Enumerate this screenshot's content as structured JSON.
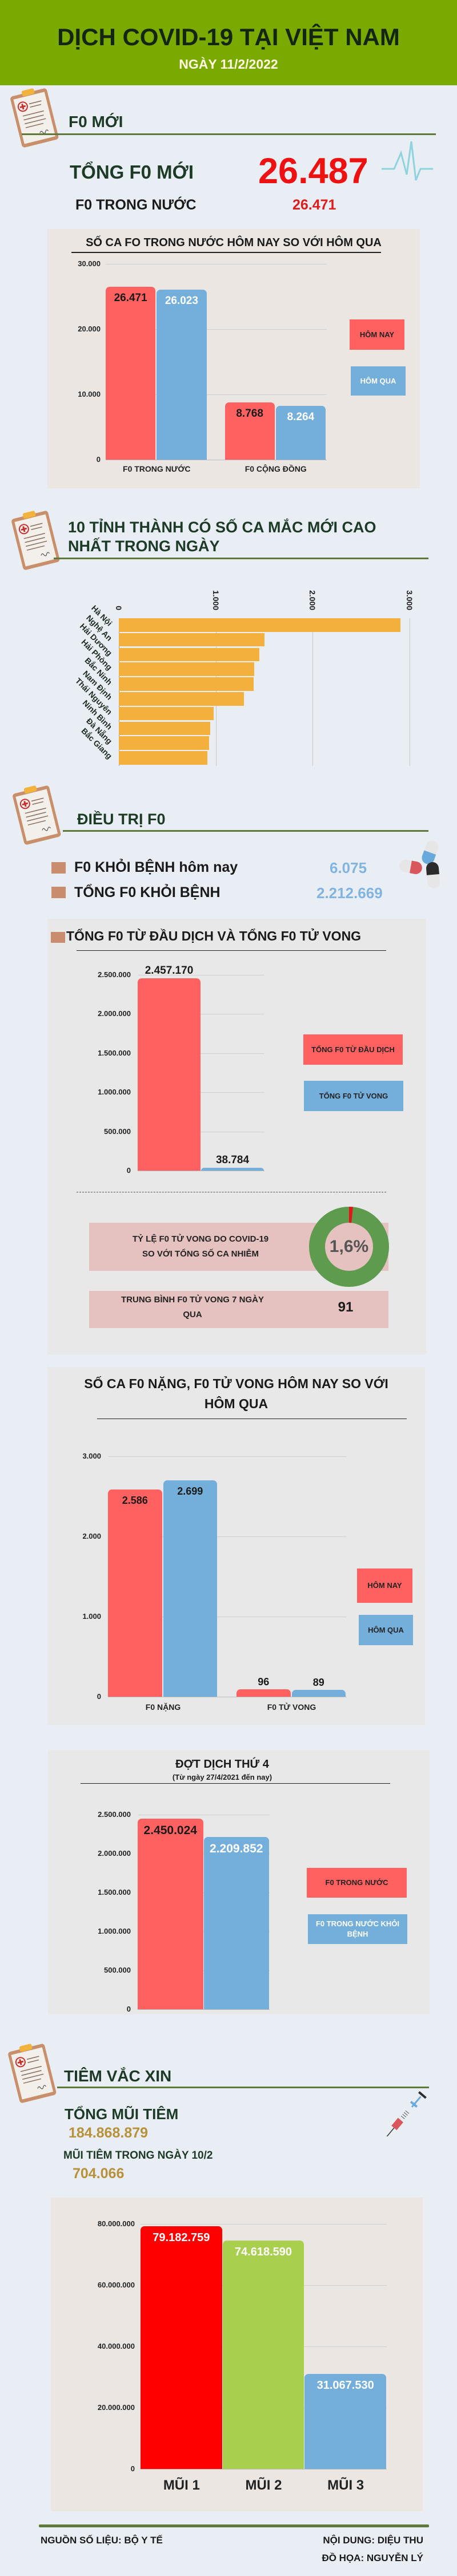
{
  "header": {
    "title": "DỊCH COVID-19 TẠI VIỆT NAM",
    "date": "NGÀY 11/2/2022"
  },
  "f0_new": {
    "section_title": "F0 MỚI",
    "total_label": "TỔNG F0 MỚI",
    "total_value": "26.487",
    "domestic_label": "F0 TRONG NƯỚC",
    "domestic_value": "26.471"
  },
  "provinces_section": {
    "title_line1": "10 TỈNH THÀNH CÓ SỐ CA MẮC MỚI CAO",
    "title_line2": "NHẤT TRONG NGÀY"
  },
  "treatment": {
    "section_title": "ĐIỀU TRỊ F0",
    "recovered_today_label": "F0 KHỎI BỆNH hôm nay",
    "recovered_today_value": "6.075",
    "recovered_total_label": "TỔNG F0 KHỎI BỆNH",
    "recovered_total_value": "2.212.669",
    "death_rate_label_line1": "TỶ LỆ F0 TỬ VONG DO COVID-19",
    "death_rate_label_line2": "SO VỚI TỔNG SỐ CA NHIỄM",
    "avg_deaths_label_line1": "TRUNG BÌNH F0 TỬ VONG 7 NGÀY",
    "avg_deaths_label_line2": "QUA",
    "avg_deaths_value": "91"
  },
  "vaccine": {
    "section_title": "TIÊM VẮC XIN",
    "total_label": "TỔNG MŨI TIÊM",
    "total_value": "184.868.879",
    "day_label": "MŨI TIÊM TRONG NGÀY 10/2",
    "day_value": "704.066"
  },
  "footer": {
    "source": "NGUỒN SỐ LIỆU: BỘ Y TẾ",
    "content": "NỘI DUNG: DIỆU THU",
    "graphics": "ĐỒ HỌA: NGUYỄN LÝ"
  },
  "chart_data": [
    {
      "type": "bar",
      "title": "SỐ CA FO TRONG NƯỚC HÔM NAY SO VỚI HÔM QUA",
      "categories": [
        "F0 TRONG NƯỚC",
        "F0 CỘNG ĐỒNG"
      ],
      "series": [
        {
          "name": "HÔM NAY",
          "values": [
            26471,
            8768
          ],
          "labels": [
            "26.471",
            "8.768"
          ],
          "color": "#ff6161"
        },
        {
          "name": "HÔM QUA",
          "values": [
            26023,
            8264
          ],
          "labels": [
            "26.023",
            "8.264"
          ],
          "color": "#74aedb"
        }
      ],
      "ylim": [
        0,
        30000
      ],
      "yticks": [
        0,
        10000,
        20000,
        30000
      ],
      "ytick_labels": [
        "0",
        "10.000",
        "20.000",
        "30.000"
      ],
      "grid": true,
      "legend": "right"
    },
    {
      "type": "bar",
      "orientation": "horizontal",
      "categories": [
        "Hà Nội",
        "Nghệ An",
        "Hải Dương",
        "Hải Phòng",
        "Bắc Ninh",
        "Nam Định",
        "Thái Nguyên",
        "Ninh Bình",
        "Đà Nẵng",
        "Bắc Giang"
      ],
      "values": [
        2908,
        1500,
        1450,
        1398,
        1390,
        1290,
        977,
        944,
        929,
        911
      ],
      "color": "#f4b03c",
      "xlim": [
        0,
        3000
      ],
      "xticks": [
        0,
        1000,
        2000,
        3000
      ],
      "xtick_labels": [
        "0",
        "1.000",
        "2.000",
        "3.000"
      ],
      "grid": true
    },
    {
      "type": "bar",
      "title": "TỔNG F0 TỪ ĐẦU DỊCH VÀ TỔNG F0 TỬ VONG",
      "categories": [
        ""
      ],
      "series": [
        {
          "name": "TỔNG F0 TỪ ĐẦU DỊCH",
          "values": [
            2457170
          ],
          "labels": [
            "2.457.170"
          ],
          "color": "#ff6161"
        },
        {
          "name": "TỔNG F0 TỬ VONG",
          "values": [
            38784
          ],
          "labels": [
            "38.784"
          ],
          "color": "#74aedb"
        }
      ],
      "ylim": [
        0,
        2500000
      ],
      "yticks": [
        0,
        500000,
        1000000,
        1500000,
        2000000,
        2500000
      ],
      "ytick_labels": [
        "0",
        "500.000",
        "1.000.000",
        "1.500.000",
        "2.000.000",
        "2.500.000"
      ],
      "grid": true,
      "legend": "right"
    },
    {
      "type": "pie",
      "values": [
        1.6,
        98.4
      ],
      "center_label": "1,6%",
      "colors": [
        "#e3151a",
        "#5e9b4f"
      ]
    },
    {
      "type": "bar",
      "title_line1": "SỐ CA F0 NẶNG, F0 TỬ VONG HÔM NAY SO VỚI",
      "title_line2": "HÔM QUA",
      "categories": [
        "F0 NẶNG",
        "F0 TỬ VONG"
      ],
      "series": [
        {
          "name": "HÔM NAY",
          "values": [
            2586,
            96
          ],
          "labels": [
            "2.586",
            "96"
          ],
          "color": "#ff6161"
        },
        {
          "name": "HÔM QUA",
          "values": [
            2699,
            89
          ],
          "labels": [
            "2.699",
            "89"
          ],
          "color": "#74aedb"
        }
      ],
      "ylim": [
        0,
        3000
      ],
      "yticks": [
        0,
        1000,
        2000,
        3000
      ],
      "ytick_labels": [
        "0",
        "1.000",
        "2.000",
        "3.000"
      ],
      "grid": true,
      "legend": "right"
    },
    {
      "type": "bar",
      "title": "ĐỢT DỊCH THỨ 4",
      "subtitle": "(Từ ngày 27/4/2021 đến nay)",
      "categories": [
        ""
      ],
      "series": [
        {
          "name": "F0 TRONG NƯỚC",
          "values": [
            2450024
          ],
          "labels": [
            "2.450.024"
          ],
          "color": "#ff6161"
        },
        {
          "name": "F0 TRONG NƯỚC KHỎI BỆNH",
          "values": [
            2209852
          ],
          "labels": [
            "2.209.852"
          ],
          "color": "#74aedb"
        }
      ],
      "ylim": [
        0,
        2500000
      ],
      "yticks": [
        0,
        500000,
        1000000,
        1500000,
        2000000,
        2500000
      ],
      "ytick_labels": [
        "0",
        "500.000",
        "1.000.000",
        "1.500.000",
        "2.000.000",
        "2.500.000"
      ],
      "grid": true,
      "legend": "right"
    },
    {
      "type": "bar",
      "categories": [
        "MŨI 1",
        "MŨI 2",
        "MŨI 3"
      ],
      "series": [
        {
          "values": [
            79182759,
            74618590,
            31067530
          ],
          "labels": [
            "79.182.759",
            "74.618.590",
            "31.067.530"
          ],
          "colors": [
            "#ff0000",
            "#a9cf4f",
            "#74aedb"
          ]
        }
      ],
      "ylim": [
        0,
        80000000
      ],
      "yticks": [
        0,
        20000000,
        40000000,
        60000000,
        80000000
      ],
      "ytick_labels": [
        "0",
        "20.000.000",
        "40.000.000",
        "60.000.000",
        "80.000.000"
      ],
      "grid": true
    }
  ]
}
